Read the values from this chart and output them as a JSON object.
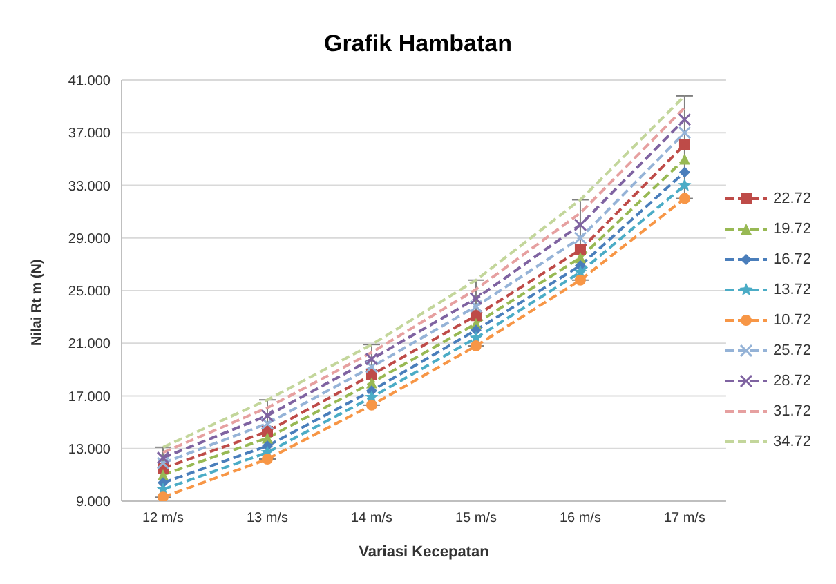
{
  "chart_data": {
    "type": "line",
    "title": "Grafik Hambatan",
    "xlabel": "Variasi Kecepatan",
    "ylabel": "Nilai Rt m (N)",
    "categories": [
      "12 m/s",
      "13 m/s",
      "14 m/s",
      "15 m/s",
      "16 m/s",
      "17 m/s"
    ],
    "ylim": [
      9,
      41
    ],
    "yticks": [
      {
        "value": 9,
        "label": "9.000"
      },
      {
        "value": 13,
        "label": "13.000"
      },
      {
        "value": 17,
        "label": "17.000"
      },
      {
        "value": 21,
        "label": "21.000"
      },
      {
        "value": 25,
        "label": "25.000"
      },
      {
        "value": 29,
        "label": "29.000"
      },
      {
        "value": 33,
        "label": "33.000"
      },
      {
        "value": 37,
        "label": "37.000"
      },
      {
        "value": 41,
        "label": "41.000"
      }
    ],
    "grid": "y",
    "legend": "right",
    "line_style": "dashed",
    "series": [
      {
        "name": "22.72",
        "color": "#be4b48",
        "marker": "square",
        "values": [
          11.5,
          14.3,
          18.6,
          23.1,
          28.1,
          36.1
        ],
        "errors": [
          [
            9.3,
            13.1
          ],
          [
            12.2,
            16.7
          ],
          [
            16.3,
            20.9
          ],
          [
            20.8,
            25.8
          ],
          [
            25.8,
            31.9
          ],
          [
            32.0,
            39.8
          ]
        ]
      },
      {
        "name": "19.72",
        "color": "#98b954",
        "marker": "triangle",
        "values": [
          11.0,
          13.8,
          18.0,
          22.5,
          27.5,
          35.0
        ]
      },
      {
        "name": "16.72",
        "color": "#4a7ebb",
        "marker": "diamond",
        "values": [
          10.4,
          13.2,
          17.4,
          22.0,
          26.9,
          34.0
        ]
      },
      {
        "name": "13.72",
        "color": "#4bacc6",
        "marker": "star",
        "values": [
          9.9,
          12.7,
          16.9,
          21.4,
          26.4,
          33.0
        ]
      },
      {
        "name": "10.72",
        "color": "#f79646",
        "marker": "circle",
        "values": [
          9.3,
          12.2,
          16.3,
          20.8,
          25.8,
          32.0
        ]
      },
      {
        "name": "25.72",
        "color": "#95b3d7",
        "marker": "cross",
        "values": [
          11.9,
          14.9,
          19.2,
          23.8,
          29.0,
          37.0
        ]
      },
      {
        "name": "28.72",
        "color": "#7f63a1",
        "marker": "cross",
        "values": [
          12.3,
          15.5,
          19.8,
          24.4,
          30.0,
          38.0
        ]
      },
      {
        "name": "31.72",
        "color": "#e6a0a0",
        "marker": "none",
        "values": [
          12.7,
          16.1,
          20.3,
          25.1,
          30.9,
          38.9
        ]
      },
      {
        "name": "34.72",
        "color": "#c3d69b",
        "marker": "none",
        "values": [
          13.1,
          16.7,
          20.9,
          25.8,
          31.9,
          39.8
        ]
      }
    ]
  }
}
